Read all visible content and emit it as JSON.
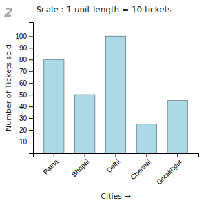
{
  "chart_data": {
    "type": "bar",
    "title": "Scale : 1 unit length = 10 tickets",
    "xlabel": "Cities →",
    "ylabel": "Number of Tickets sold",
    "annotations": [
      "2"
    ],
    "categories": [
      "Patna",
      "Bhopal",
      "Delhi",
      "Chennai",
      "Gorakhpur"
    ],
    "values": [
      80,
      50,
      100,
      25,
      45
    ],
    "color": "#add8e6",
    "ylim": [
      0,
      112
    ],
    "yticks": [
      10,
      20,
      30,
      40,
      50,
      60,
      70,
      80,
      90,
      100
    ],
    "grid": false
  }
}
